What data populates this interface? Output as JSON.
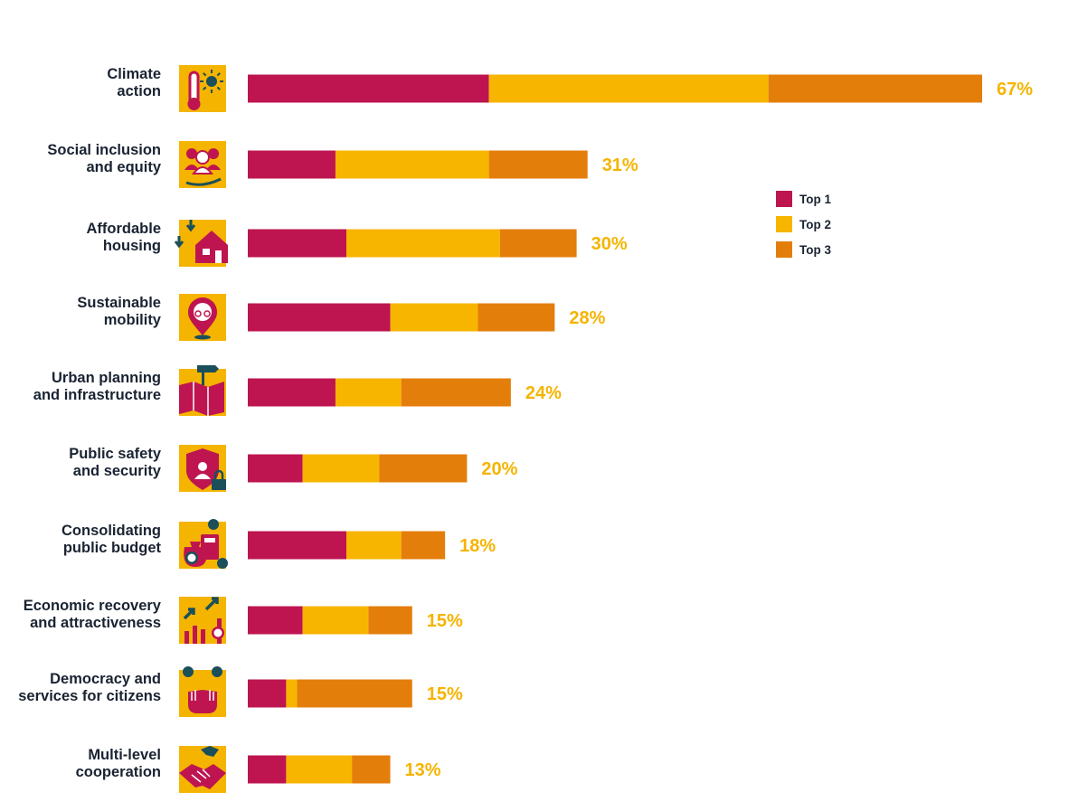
{
  "chart_data": {
    "type": "bar",
    "orientation": "horizontal",
    "stacked": true,
    "title": "",
    "xlabel": "",
    "ylabel": "",
    "xlim": [
      0,
      67
    ],
    "grid": false,
    "legend_position": "right",
    "categories": [
      [
        "Climate",
        "action"
      ],
      [
        "Social inclusion",
        "and equity"
      ],
      [
        "Affordable",
        "housing"
      ],
      [
        "Sustainable",
        "mobility"
      ],
      [
        "Urban planning",
        "and infrastructure"
      ],
      [
        "Public safety",
        "and security"
      ],
      [
        "Consolidating",
        "public budget"
      ],
      [
        "Economic recovery",
        "and attractiveness"
      ],
      [
        "Democracy and",
        "services for citizens"
      ],
      [
        "Multi-level",
        "cooperation"
      ]
    ],
    "icons": [
      "thermometer-sun-icon",
      "people-hand-icon",
      "house-arrows-icon",
      "bike-location-pin-icon",
      "map-signpost-icon",
      "shield-user-lock-icon",
      "money-bag-calculator-icon",
      "growth-bars-euro-icon",
      "raised-hands-vote-icon",
      "handshake-icon"
    ],
    "totals": [
      "67%",
      "31%",
      "30%",
      "28%",
      "24%",
      "20%",
      "18%",
      "15%",
      "15%",
      "13%"
    ],
    "series": [
      {
        "name": "Top 1",
        "color": "#be1550",
        "values": [
          22,
          8,
          9,
          13,
          8,
          5,
          9,
          5,
          3.5,
          3.5
        ]
      },
      {
        "name": "Top 2",
        "color": "#f7b500",
        "values": [
          25.5,
          14,
          14,
          8,
          6,
          7,
          5,
          6,
          1,
          6
        ]
      },
      {
        "name": "Top 3",
        "color": "#e47e0b",
        "values": [
          19.5,
          9,
          7,
          7,
          10,
          8,
          4,
          4,
          10.5,
          3.5
        ]
      }
    ],
    "colors": {
      "total_label": "#f5b400",
      "icon_bg": "#f5b400",
      "text": "#1a2332",
      "icon_accent": "#1b4f5a"
    }
  }
}
